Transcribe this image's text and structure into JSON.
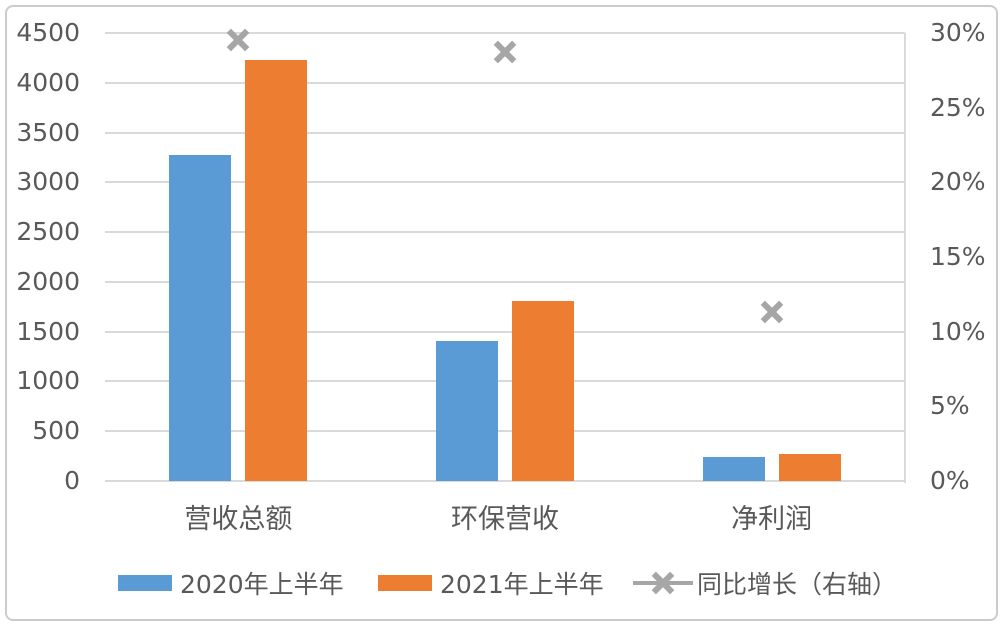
{
  "chart_data": {
    "type": "bar",
    "title": "",
    "categories": [
      "营收总额",
      "环保营收",
      "净利润"
    ],
    "series": [
      {
        "name": "2020年上半年",
        "type": "bar",
        "axis": "left",
        "color": "#5B9BD5",
        "values": [
          3270,
          1410,
          240
        ]
      },
      {
        "name": "2021年上半年",
        "type": "bar",
        "axis": "left",
        "color": "#ED7D31",
        "values": [
          4230,
          1810,
          267
        ]
      },
      {
        "name": "同比增长（右轴）",
        "type": "line",
        "marker": "x",
        "axis": "right",
        "color": "#A6A6A6",
        "values": [
          29.5,
          28.7,
          11.3
        ],
        "unit": "%"
      }
    ],
    "left_axis": {
      "min": 0,
      "max": 4500,
      "step": 500,
      "tick_labels": [
        "0",
        "500",
        "1000",
        "1500",
        "2000",
        "2500",
        "3000",
        "3500",
        "4000",
        "4500"
      ]
    },
    "right_axis": {
      "min": 0,
      "max": 30,
      "step": 5,
      "tick_labels": [
        "0%",
        "5%",
        "10%",
        "15%",
        "20%",
        "25%",
        "30%"
      ]
    },
    "grid": true,
    "legend_position": "bottom"
  },
  "colors": {
    "bar_2020": "#5B9BD5",
    "bar_2021": "#ED7D31",
    "growth_marker": "#A6A6A6",
    "gridline": "#D9D9D9",
    "axis_text": "#595959",
    "frame_border": "#C9CCCF",
    "background": "#FFFFFF"
  }
}
